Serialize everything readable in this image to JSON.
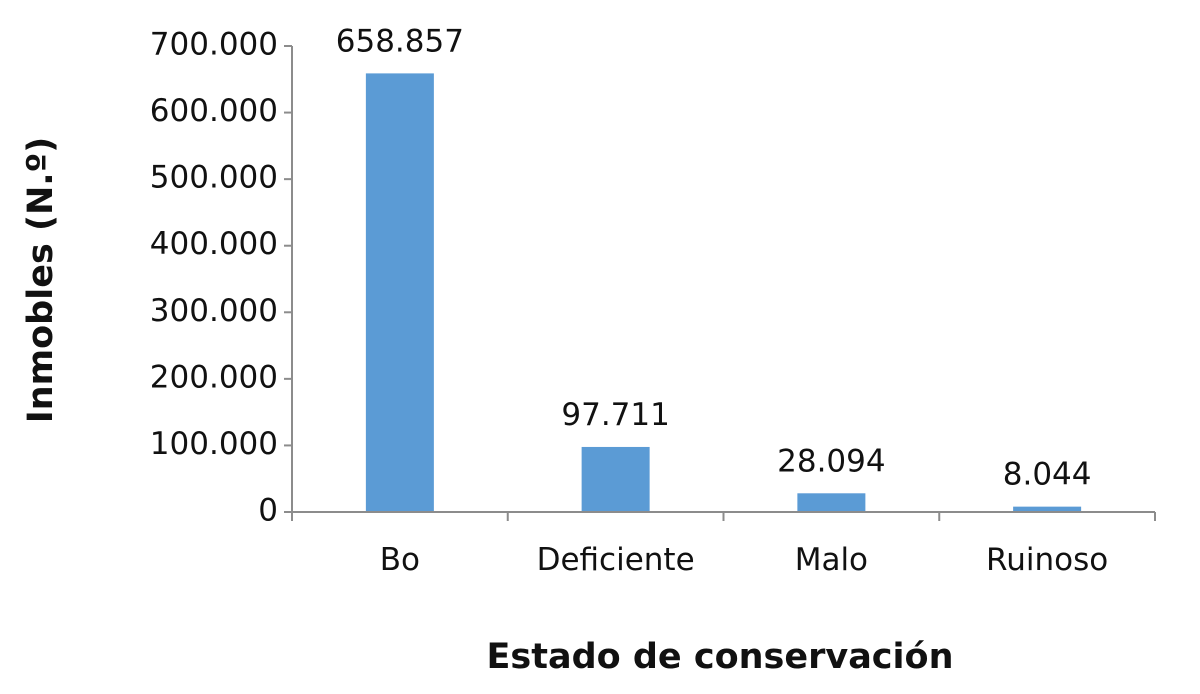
{
  "chart_data": {
    "type": "bar",
    "title": "",
    "xlabel": "Estado de conservación",
    "ylabel": "Inmobles (N.º)",
    "categories": [
      "Bo",
      "Deficiente",
      "Malo",
      "Ruinoso"
    ],
    "values": [
      658857,
      97711,
      28094,
      8044
    ],
    "data_labels": [
      "658.857",
      "97.711",
      "28.094",
      "8.044"
    ],
    "ylim": [
      0,
      700000
    ],
    "yticks": [
      0,
      100000,
      200000,
      300000,
      400000,
      500000,
      600000,
      700000
    ],
    "ytick_labels": [
      "0",
      "100.000",
      "200.000",
      "300.000",
      "400.000",
      "500.000",
      "600.000",
      "700.000"
    ],
    "grid": false,
    "legend": "none",
    "colors": {
      "bar": "#5b9bd5",
      "axis": "#8c8c8c",
      "text": "#111111"
    }
  }
}
